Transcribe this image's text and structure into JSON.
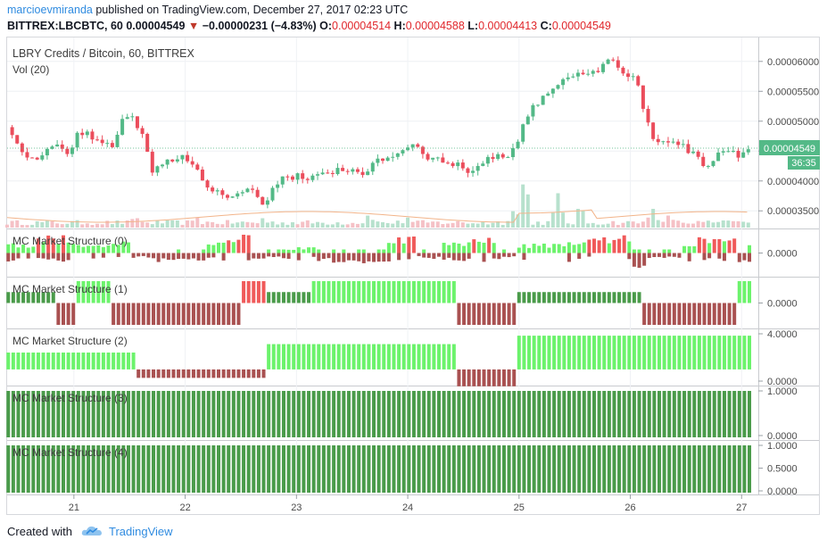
{
  "header": {
    "author": "marcioevmiranda",
    "published_text": "published on TradingView.com, December 27, 2017 02:23 UTC",
    "symbol_line": "BITTREX:LBCBTC, 60",
    "last_price": "0.00004549",
    "change": "−0.00000231 (−4.83%)",
    "o_label": "O:",
    "o_value": "0.00004514",
    "h_label": "H:",
    "h_value": "0.00004588",
    "l_label": "L:",
    "l_value": "0.00004413",
    "c_label": "C:",
    "c_value": "0.00004549"
  },
  "main_pane": {
    "title": "LBRY Credits / Bitcoin, 60, BITTREX",
    "vol_label": "Vol (20)",
    "price_badge": "0.00004549",
    "countdown_badge": "36:35"
  },
  "footer": {
    "created_with": "Created with",
    "brand": "TradingView"
  },
  "colors": {
    "up": "#53b987",
    "down": "#eb4d5c",
    "bright_green": "#6cf36c",
    "dark_green": "#4a9b4a",
    "bright_red": "#f05a5a",
    "dark_red": "#a95151",
    "badge": "#53b987"
  },
  "chart_data": [
    {
      "type": "candlestick",
      "title": "LBRY Credits / Bitcoin, 60, BITTREX",
      "x_ticks": [
        "21",
        "22",
        "23",
        "24",
        "25",
        "26",
        "27"
      ],
      "y_ticks": [
        "0.00006000",
        "0.00005500",
        "0.00005000",
        "0.00004500",
        "0.00004000",
        "0.00003500"
      ],
      "ylim": [
        3.22e-05,
        6.4e-05
      ],
      "last_price": 4.549e-05,
      "close_path": [
        [
          20.4,
          4.9e-05
        ],
        [
          20.5,
          4.55e-05
        ],
        [
          20.65,
          4.35e-05
        ],
        [
          20.8,
          4.6e-05
        ],
        [
          20.95,
          4.45e-05
        ],
        [
          21.05,
          4.85e-05
        ],
        [
          21.2,
          4.7e-05
        ],
        [
          21.35,
          4.6e-05
        ],
        [
          21.45,
          5.1e-05
        ],
        [
          21.55,
          5e-05
        ],
        [
          21.65,
          4.6e-05
        ],
        [
          21.7,
          4.15e-05
        ],
        [
          21.85,
          4.35e-05
        ],
        [
          22.0,
          4.4e-05
        ],
        [
          22.1,
          4.2e-05
        ],
        [
          22.2,
          3.95e-05
        ],
        [
          22.3,
          3.8e-05
        ],
        [
          22.45,
          3.7e-05
        ],
        [
          22.55,
          3.95e-05
        ],
        [
          22.7,
          3.6e-05
        ],
        [
          22.85,
          4e-05
        ],
        [
          23.0,
          4.1e-05
        ],
        [
          23.15,
          4.05e-05
        ],
        [
          23.3,
          4.15e-05
        ],
        [
          23.45,
          4.2e-05
        ],
        [
          23.6,
          4.15e-05
        ],
        [
          23.75,
          4.35e-05
        ],
        [
          23.9,
          4.45e-05
        ],
        [
          24.05,
          4.65e-05
        ],
        [
          24.15,
          4.4e-05
        ],
        [
          24.3,
          4.35e-05
        ],
        [
          24.45,
          4.25e-05
        ],
        [
          24.55,
          4.1e-05
        ],
        [
          24.7,
          4.35e-05
        ],
        [
          24.9,
          4.45e-05
        ],
        [
          24.98,
          4.65e-05
        ],
        [
          25.05,
          5.05e-05
        ],
        [
          25.15,
          5.3e-05
        ],
        [
          25.3,
          5.55e-05
        ],
        [
          25.45,
          5.7e-05
        ],
        [
          25.6,
          5.8e-05
        ],
        [
          25.75,
          5.9e-05
        ],
        [
          25.85,
          6.05e-05
        ],
        [
          25.95,
          5.75e-05
        ],
        [
          26.05,
          5.8e-05
        ],
        [
          26.12,
          5.2e-05
        ],
        [
          26.2,
          4.65e-05
        ],
        [
          26.3,
          4.7e-05
        ],
        [
          26.45,
          4.6e-05
        ],
        [
          26.6,
          4.4e-05
        ],
        [
          26.7,
          4.2e-05
        ],
        [
          26.8,
          4.45e-05
        ],
        [
          26.92,
          4.5e-05
        ],
        [
          27.0,
          4.4e-05
        ],
        [
          27.08,
          4.55e-05
        ]
      ],
      "volume": {
        "label": "Vol (20)",
        "spikes": [
          [
            21.55,
            0.2
          ],
          [
            22.1,
            0.18
          ],
          [
            22.7,
            0.16
          ],
          [
            23.65,
            0.22
          ],
          [
            24.0,
            0.16
          ],
          [
            24.95,
            0.28
          ],
          [
            25.05,
            0.85
          ],
          [
            25.35,
            0.55
          ],
          [
            25.55,
            0.4
          ],
          [
            26.2,
            0.32
          ],
          [
            26.35,
            0.22
          ],
          [
            26.9,
            0.15
          ]
        ]
      }
    },
    {
      "type": "bar",
      "title": "MC Market Structure (0)",
      "y_ticks": [
        "0.0000"
      ],
      "pattern": [
        [
          20.4,
          "up",
          0.5
        ],
        [
          20.65,
          "up",
          0.9
        ],
        [
          21.0,
          "up",
          0.4
        ],
        [
          21.3,
          "up",
          0.6
        ],
        [
          21.5,
          "dn",
          0.3
        ],
        [
          21.7,
          "dn",
          0.5
        ],
        [
          22.0,
          "dn",
          0.4
        ],
        [
          22.2,
          "up",
          0.7
        ],
        [
          22.45,
          "up",
          1.0
        ],
        [
          22.6,
          "dn",
          0.3
        ],
        [
          22.9,
          "up",
          0.3
        ],
        [
          23.2,
          "dn",
          0.5
        ],
        [
          23.5,
          "dn",
          0.6
        ],
        [
          23.8,
          "up",
          0.8
        ],
        [
          24.0,
          "up",
          1.0
        ],
        [
          24.1,
          "dn",
          0.3
        ],
        [
          24.3,
          "up",
          0.7
        ],
        [
          24.55,
          "up",
          0.8
        ],
        [
          24.8,
          "dn",
          0.3
        ],
        [
          25.0,
          "up",
          0.5
        ],
        [
          25.3,
          "up",
          0.6
        ],
        [
          25.55,
          "up",
          0.8
        ],
        [
          25.85,
          "up",
          1.0
        ],
        [
          26.0,
          "dn",
          0.8
        ],
        [
          26.15,
          "dn",
          0.3
        ],
        [
          26.45,
          "up",
          0.5
        ],
        [
          26.6,
          "up",
          0.8
        ],
        [
          26.8,
          "up",
          1.0
        ],
        [
          26.95,
          "dn",
          0.5
        ],
        [
          27.05,
          "up",
          0.4
        ]
      ]
    },
    {
      "type": "bar",
      "title": "MC Market Structure (1)",
      "y_ticks": [
        "0.0000"
      ],
      "pattern": [
        [
          20.4,
          "dgp",
          0.5
        ],
        [
          20.85,
          "dr",
          1.0
        ],
        [
          21.02,
          "bg",
          1.0
        ],
        [
          21.35,
          "dr",
          1.0
        ],
        [
          21.6,
          "dr",
          1.0
        ],
        [
          21.75,
          "dr",
          1.0
        ],
        [
          22.5,
          "br",
          1.0
        ],
        [
          22.75,
          "dg",
          0.5
        ],
        [
          23.0,
          "dg",
          0.5
        ],
        [
          23.15,
          "bg",
          1.0
        ],
        [
          24.05,
          "bg",
          1.0
        ],
        [
          24.45,
          "dr",
          1.0
        ],
        [
          24.65,
          "dr",
          1.0
        ],
        [
          25.0,
          "dg",
          0.5
        ],
        [
          26.1,
          "dr",
          1.0
        ],
        [
          26.95,
          "bg",
          1.0
        ]
      ]
    },
    {
      "type": "bar",
      "title": "MC Market Structure (2)",
      "y_ticks": [
        "4.0000",
        "0.0000"
      ],
      "pattern": [
        [
          20.4,
          "bg",
          0.5
        ],
        [
          21.55,
          "dr",
          0.25
        ],
        [
          22.75,
          "bg",
          0.75
        ],
        [
          24.45,
          "dr",
          0.5
        ],
        [
          25.0,
          "bg",
          1.0
        ]
      ]
    },
    {
      "type": "bar",
      "title": "MC Market Structure (3)",
      "y_ticks": [
        "1.0000",
        "0.0000"
      ],
      "pattern": [
        [
          20.4,
          "dg",
          1.0
        ]
      ]
    },
    {
      "type": "bar",
      "title": "MC Market Structure (4)",
      "y_ticks": [
        "1.0000",
        "0.5000",
        "0.0000"
      ],
      "pattern": [
        [
          20.4,
          "dg",
          1.0
        ]
      ]
    }
  ]
}
